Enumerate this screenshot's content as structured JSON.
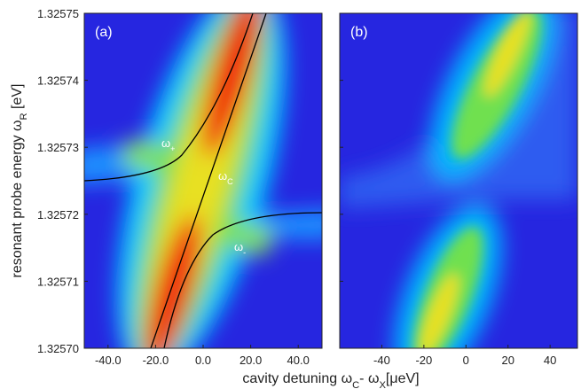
{
  "chart_data": [
    {
      "type": "heatmap",
      "panel_label": "(a)",
      "xlim": [
        -50,
        50
      ],
      "xticks": [
        {
          "value": -40,
          "label": "-40.0"
        },
        {
          "value": -20,
          "label": "-20.0"
        },
        {
          "value": 0,
          "label": "0.0"
        },
        {
          "value": 20,
          "label": "20.0"
        },
        {
          "value": 40,
          "label": "40.0"
        }
      ],
      "ylim": [
        1.3257,
        1.32575
      ],
      "yticks": [
        {
          "value": 1.3257,
          "label": "1.32570"
        },
        1.32571,
        1.32572,
        1.32573,
        1.32574,
        1.32575
      ],
      "y_label": {
        "text": "resonant probe energy ω",
        "sub": "R",
        "after": " [eV]"
      },
      "x_label": {
        "text": "cavity detuning ω",
        "sub": "C",
        "mid": "- ω",
        "sub2": "X",
        "after": "[μeV]"
      },
      "annotations": [
        {
          "text": "ω",
          "sub": "+"
        },
        {
          "text": "ω",
          "sub": "C"
        },
        {
          "text": "ω",
          "sub": "-"
        }
      ]
    },
    {
      "type": "heatmap",
      "panel_label": "(b)",
      "xlim": [
        -60,
        53
      ],
      "xticks": [
        -40,
        -20,
        0,
        20,
        40
      ],
      "ylim": [
        1.3257,
        1.32575
      ],
      "yticks": [
        1.3257,
        1.32571,
        1.32572,
        1.32573,
        1.32574,
        1.32575
      ]
    }
  ]
}
